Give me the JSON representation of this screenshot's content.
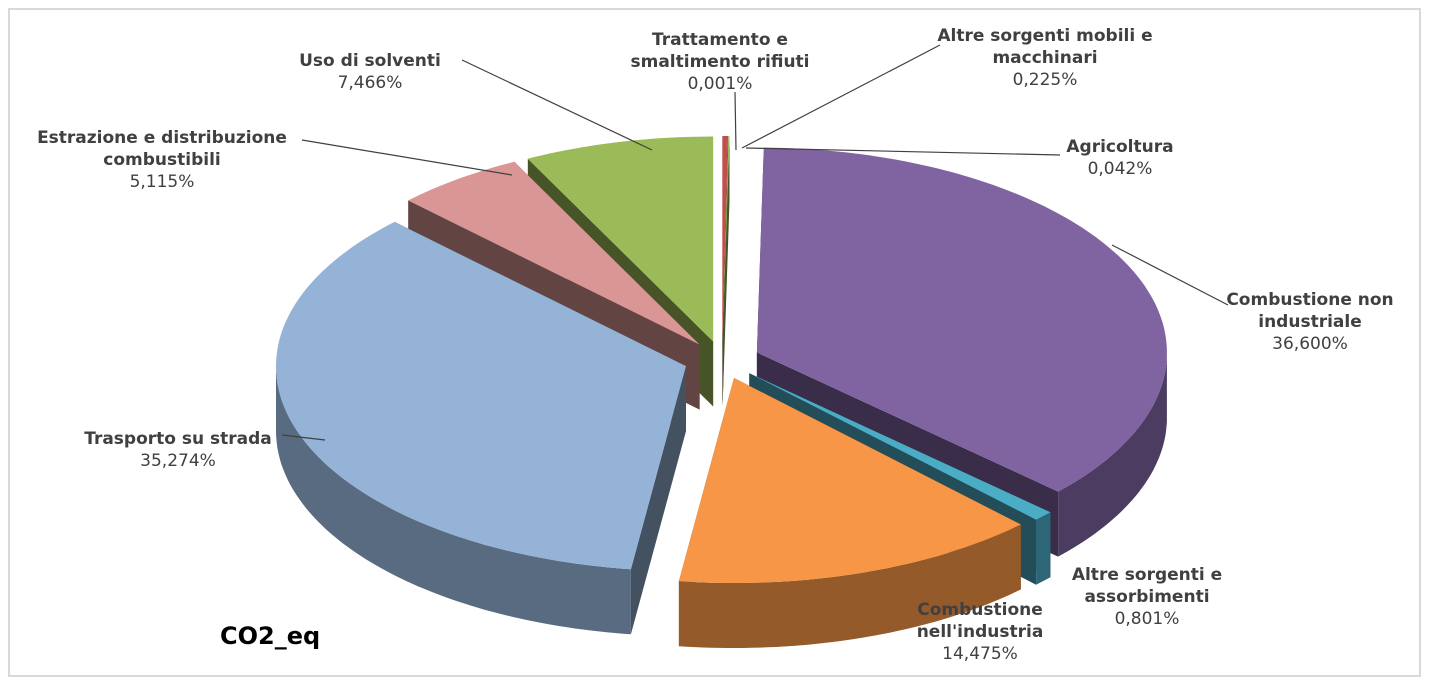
{
  "chart_data": {
    "type": "pie3d",
    "title": "CO2_eq",
    "categories": [
      "Trattamento e smaltimento rifiuti",
      "Altre sorgenti mobili e macchinari",
      "Agricoltura",
      "Combustione non industriale",
      "Altre sorgenti e assorbimenti",
      "Combustione nell'industria",
      "Trasporto su strada",
      "Estrazione e distribuzione combustibili",
      "Uso di solventi"
    ],
    "values": [
      0.001,
      0.225,
      0.042,
      36.6,
      0.801,
      14.475,
      35.274,
      5.115,
      7.466
    ],
    "value_labels": [
      "0,001%",
      "0,225%",
      "0,042%",
      "36,600%",
      "0,801%",
      "14,475%",
      "35,274%",
      "5,115%",
      "7,466%"
    ],
    "colors": [
      "#4f81bd",
      "#c0504d",
      "#9bbb59",
      "#8064a2",
      "#4bacc6",
      "#f79646",
      "#95b3d7",
      "#d99694",
      "#9bbb59"
    ]
  }
}
